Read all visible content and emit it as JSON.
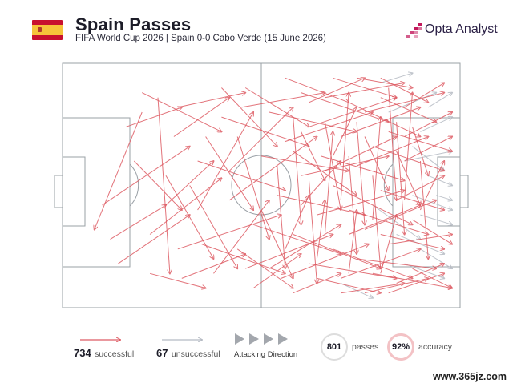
{
  "header": {
    "title": "Spain Passes",
    "subtitle": "FIFA World Cup 2026 | Spain 0-0 Cabo Verde (15 June 2026)",
    "brand": "Opta Analyst"
  },
  "legend": {
    "successful_count": "734",
    "successful_label": "successful",
    "unsuccessful_count": "67",
    "unsuccessful_label": "unsuccessful",
    "direction_label": "Attacking Direction",
    "passes_count": "801",
    "passes_label": "passes",
    "accuracy_value": "92%",
    "accuracy_label": "accuracy"
  },
  "watermark": "www.365jz.com",
  "colors": {
    "successful": "#de5b63",
    "unsuccessful": "#b5bac3",
    "pitch_line": "#9aa0a6",
    "accuracy_ring": "#f3c2c5",
    "logo_dots": "#c2185b"
  },
  "chart_data": {
    "type": "pass-map",
    "team": "Spain",
    "attacking_direction": "left-to-right",
    "pitch_length": 100,
    "pitch_width": 100,
    "totals": {
      "passes": 801,
      "successful": 734,
      "unsuccessful": 67,
      "accuracy_pct": 92
    },
    "passes_successful": [
      [
        20,
        20,
        8,
        68
      ],
      [
        14,
        82,
        32,
        62
      ],
      [
        10,
        58,
        32,
        34
      ],
      [
        22,
        70,
        40,
        47
      ],
      [
        24,
        14,
        27,
        86
      ],
      [
        29,
        18,
        46,
        12
      ],
      [
        20,
        12,
        40,
        28
      ],
      [
        29,
        76,
        55,
        62
      ],
      [
        34,
        40,
        56,
        52
      ],
      [
        35,
        74,
        56,
        86
      ],
      [
        40,
        22,
        62,
        34
      ],
      [
        42,
        56,
        64,
        30
      ],
      [
        45,
        18,
        66,
        12
      ],
      [
        46,
        84,
        68,
        70
      ],
      [
        48,
        66,
        70,
        78
      ],
      [
        50,
        38,
        72,
        44
      ],
      [
        52,
        20,
        74,
        28
      ],
      [
        54,
        54,
        76,
        62
      ],
      [
        55,
        88,
        77,
        74
      ],
      [
        56,
        32,
        78,
        20
      ],
      [
        58,
        70,
        80,
        84
      ],
      [
        60,
        12,
        82,
        24
      ],
      [
        60,
        46,
        82,
        38
      ],
      [
        62,
        82,
        84,
        88
      ],
      [
        62,
        26,
        84,
        14
      ],
      [
        64,
        62,
        86,
        52
      ],
      [
        65,
        38,
        86,
        48
      ],
      [
        66,
        14,
        86,
        8
      ],
      [
        68,
        76,
        88,
        88
      ],
      [
        68,
        50,
        88,
        66
      ],
      [
        70,
        30,
        90,
        18
      ],
      [
        70,
        88,
        90,
        76
      ],
      [
        72,
        60,
        92,
        70
      ],
      [
        72,
        16,
        90,
        30
      ],
      [
        74,
        80,
        94,
        84
      ],
      [
        74,
        42,
        92,
        30
      ],
      [
        76,
        20,
        96,
        12
      ],
      [
        76,
        68,
        94,
        56
      ],
      [
        78,
        34,
        96,
        44
      ],
      [
        78,
        86,
        98,
        92
      ],
      [
        80,
        52,
        96,
        60
      ],
      [
        80,
        14,
        94,
        24
      ],
      [
        82,
        74,
        98,
        70
      ],
      [
        82,
        28,
        98,
        36
      ],
      [
        84,
        56,
        96,
        46
      ],
      [
        84,
        90,
        96,
        82
      ],
      [
        86,
        40,
        98,
        30
      ],
      [
        86,
        18,
        96,
        8
      ],
      [
        88,
        64,
        98,
        74
      ],
      [
        88,
        84,
        98,
        92
      ],
      [
        46,
        10,
        62,
        26
      ],
      [
        48,
        92,
        60,
        78
      ],
      [
        44,
        30,
        52,
        72
      ],
      [
        50,
        60,
        58,
        88
      ],
      [
        52,
        84,
        70,
        66
      ],
      [
        56,
        6,
        72,
        16
      ],
      [
        58,
        94,
        70,
        86
      ],
      [
        60,
        58,
        70,
        40
      ],
      [
        62,
        16,
        76,
        6
      ],
      [
        64,
        88,
        80,
        94
      ],
      [
        66,
        24,
        70,
        60
      ],
      [
        68,
        6,
        84,
        14
      ],
      [
        70,
        94,
        86,
        90
      ],
      [
        72,
        38,
        74,
        78
      ],
      [
        74,
        6,
        88,
        10
      ],
      [
        76,
        94,
        92,
        88
      ],
      [
        78,
        46,
        80,
        84
      ],
      [
        80,
        6,
        92,
        16
      ],
      [
        82,
        94,
        96,
        86
      ],
      [
        84,
        24,
        86,
        70
      ],
      [
        54,
        42,
        56,
        84
      ],
      [
        58,
        22,
        60,
        66
      ],
      [
        62,
        48,
        64,
        90
      ],
      [
        66,
        70,
        68,
        28
      ],
      [
        70,
        56,
        72,
        12
      ],
      [
        74,
        24,
        76,
        66
      ],
      [
        78,
        64,
        80,
        22
      ],
      [
        82,
        10,
        84,
        56
      ],
      [
        86,
        56,
        88,
        12
      ],
      [
        90,
        40,
        92,
        80
      ],
      [
        34,
        60,
        48,
        20
      ],
      [
        36,
        30,
        48,
        60
      ],
      [
        38,
        86,
        52,
        56
      ],
      [
        32,
        50,
        44,
        84
      ],
      [
        40,
        10,
        54,
        34
      ],
      [
        26,
        46,
        38,
        80
      ],
      [
        28,
        30,
        42,
        14
      ],
      [
        30,
        88,
        46,
        78
      ],
      [
        18,
        40,
        30,
        60
      ],
      [
        16,
        26,
        30,
        18
      ],
      [
        22,
        86,
        36,
        92
      ],
      [
        12,
        72,
        26,
        58
      ],
      [
        26,
        58,
        38,
        40
      ],
      [
        42,
        44,
        58,
        18
      ],
      [
        44,
        76,
        58,
        92
      ],
      [
        58,
        36,
        74,
        54
      ],
      [
        66,
        44,
        84,
        30
      ],
      [
        72,
        70,
        90,
        58
      ],
      [
        80,
        70,
        96,
        76
      ],
      [
        86,
        30,
        98,
        20
      ],
      [
        56,
        76,
        62,
        54
      ],
      [
        60,
        28,
        66,
        48
      ],
      [
        64,
        80,
        66,
        56
      ],
      [
        68,
        38,
        74,
        18
      ],
      [
        72,
        86,
        74,
        60
      ],
      [
        76,
        30,
        82,
        52
      ],
      [
        80,
        86,
        84,
        62
      ],
      [
        84,
        36,
        90,
        58
      ],
      [
        88,
        26,
        92,
        46
      ],
      [
        90,
        60,
        96,
        40
      ]
    ],
    "passes_unsuccessful": [
      [
        86,
        40,
        98,
        36
      ],
      [
        88,
        54,
        98,
        60
      ],
      [
        90,
        28,
        98,
        22
      ],
      [
        84,
        70,
        96,
        78
      ],
      [
        92,
        46,
        98,
        50
      ],
      [
        90,
        62,
        98,
        66
      ],
      [
        82,
        20,
        94,
        12
      ],
      [
        86,
        82,
        96,
        88
      ],
      [
        78,
        58,
        90,
        72
      ],
      [
        88,
        34,
        96,
        44
      ],
      [
        70,
        90,
        78,
        96
      ],
      [
        80,
        8,
        88,
        4
      ],
      [
        92,
        18,
        98,
        12
      ],
      [
        90,
        76,
        98,
        84
      ],
      [
        94,
        54,
        98,
        56
      ]
    ]
  }
}
